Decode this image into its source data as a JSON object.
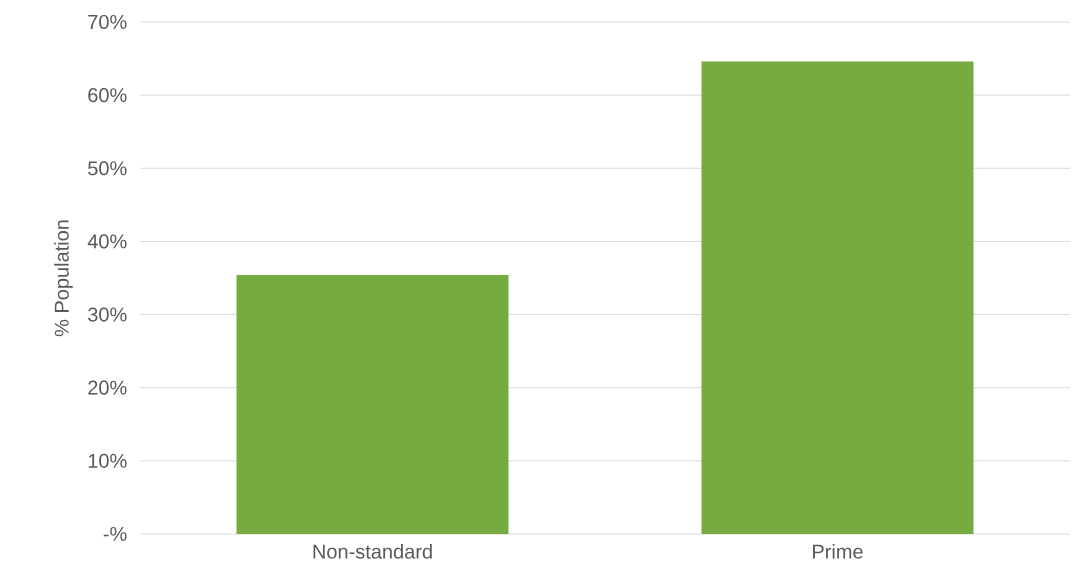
{
  "chart_data": {
    "type": "bar",
    "ylabel": "% Population",
    "categories": [
      "Non-standard",
      "Prime"
    ],
    "values": [
      35.4,
      64.6
    ],
    "color": "#76ab41",
    "ylim": [
      0,
      70
    ],
    "yticks": [
      {
        "value": 0,
        "label": "-%"
      },
      {
        "value": 10,
        "label": "10%"
      },
      {
        "value": 20,
        "label": "20%"
      },
      {
        "value": 30,
        "label": "30%"
      },
      {
        "value": 40,
        "label": "40%"
      },
      {
        "value": 50,
        "label": "50%"
      },
      {
        "value": 60,
        "label": "60%"
      },
      {
        "value": 70,
        "label": "70%"
      }
    ],
    "grid": "y"
  }
}
